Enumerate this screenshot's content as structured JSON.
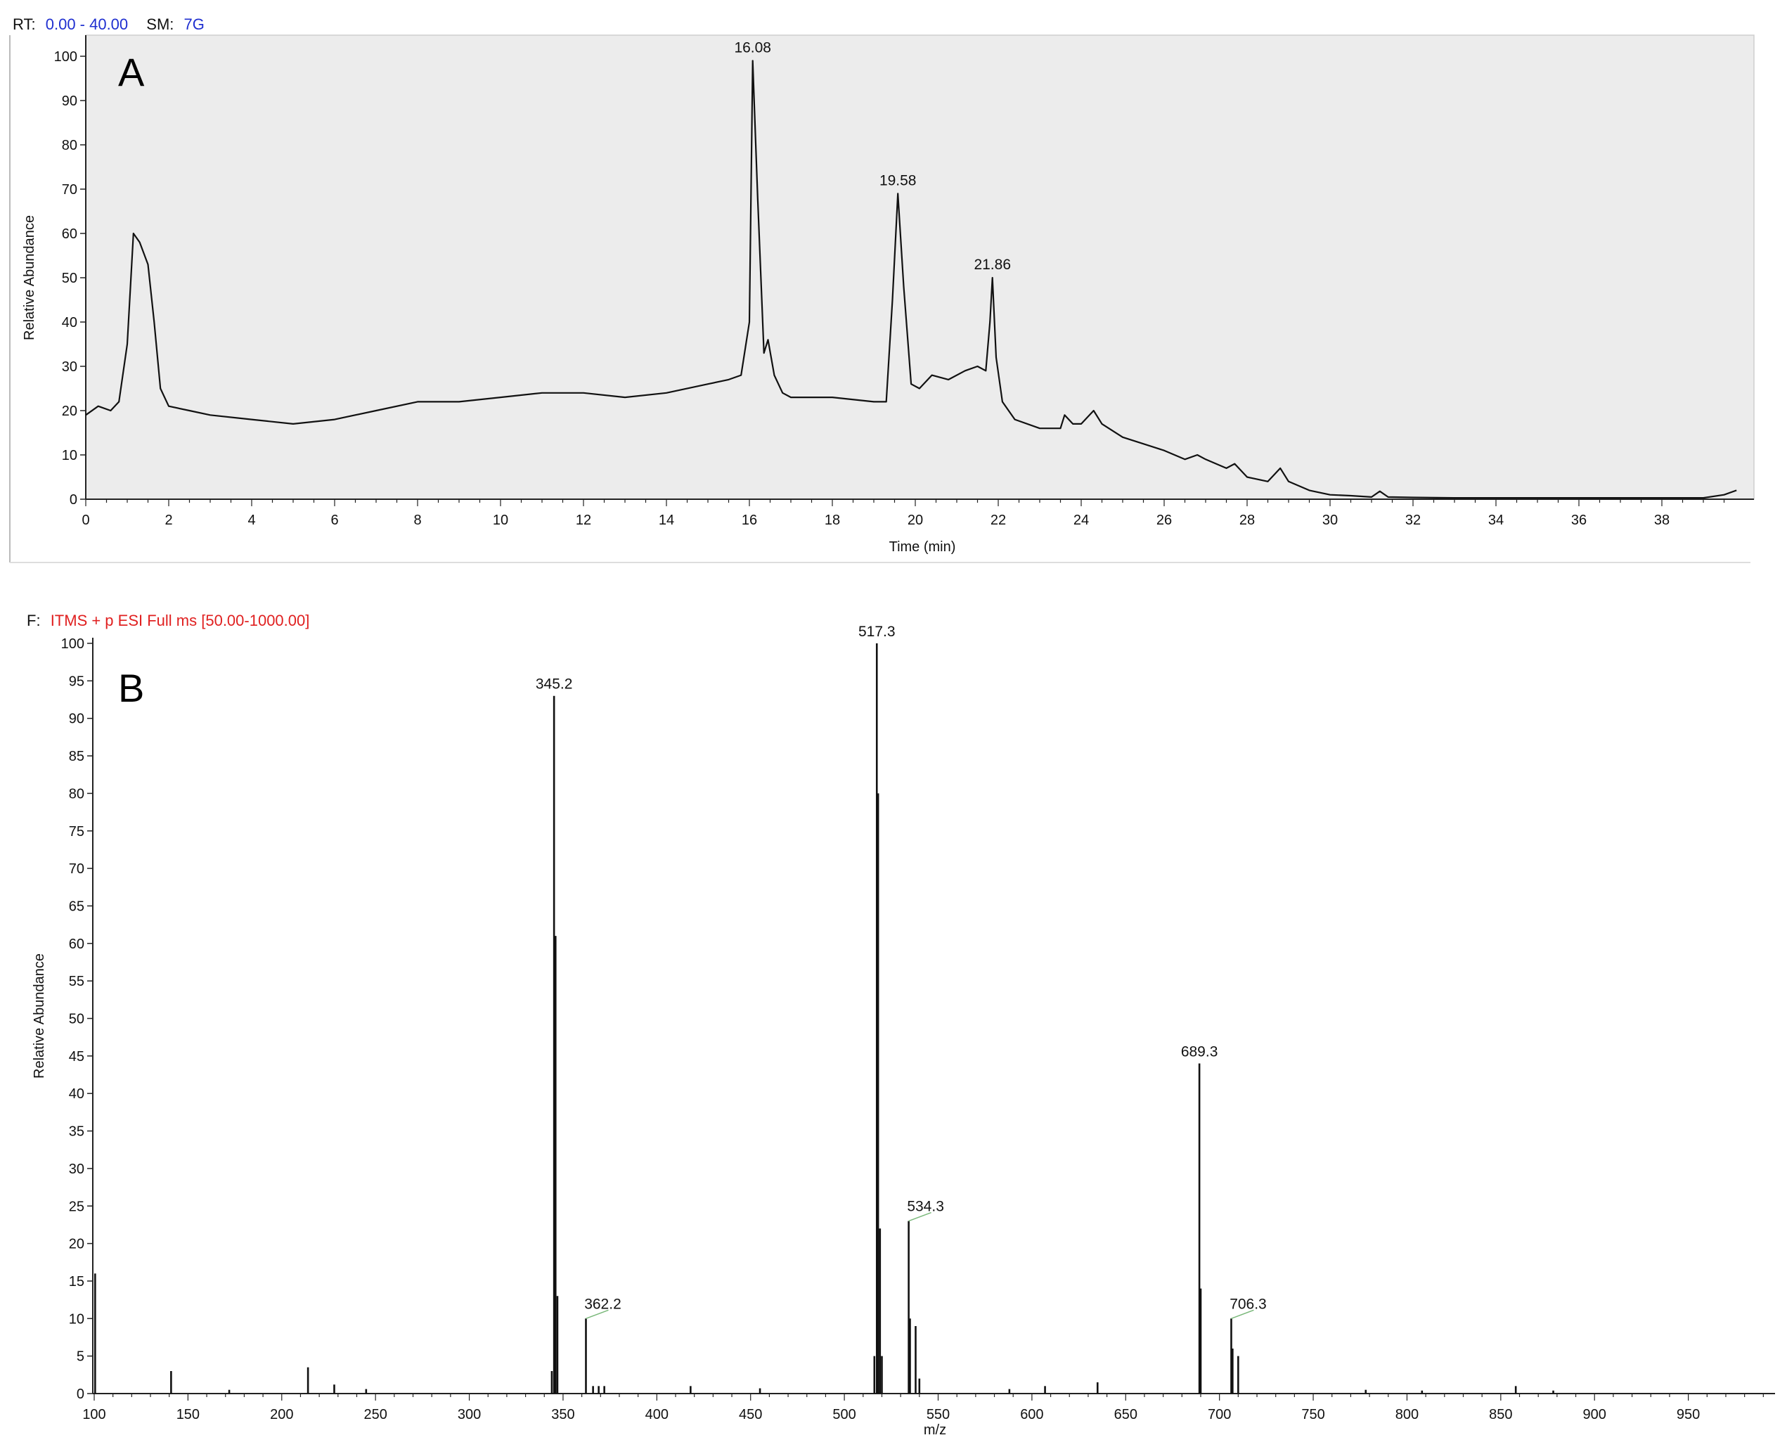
{
  "colors": {
    "header_blue": "#1f2fd0",
    "header_red": "#e02020",
    "plot_bg_A": "#ececec",
    "trace": "#111111",
    "label_leader": "#7ab87a"
  },
  "chart_data": [
    {
      "type": "line",
      "panel_label": "A",
      "header": {
        "rt_prefix": "RT:",
        "rt_value": "0.00 - 40.00",
        "sm_prefix": "SM:",
        "sm_value": "7G"
      },
      "xlabel": "Time (min)",
      "ylabel": "Relative Abundance",
      "xlim": [
        0,
        40
      ],
      "ylim": [
        0,
        100
      ],
      "x_ticks": [
        "0",
        "2",
        "4",
        "6",
        "8",
        "10",
        "12",
        "14",
        "16",
        "18",
        "20",
        "22",
        "24",
        "26",
        "28",
        "30",
        "32",
        "34",
        "36",
        "38"
      ],
      "y_ticks": [
        "0",
        "10",
        "20",
        "30",
        "40",
        "50",
        "60",
        "70",
        "80",
        "90",
        "100"
      ],
      "grid": false,
      "series": [
        {
          "x": [
            0,
            0.3,
            0.6,
            0.8,
            1.0,
            1.15,
            1.3,
            1.5,
            1.65,
            1.8,
            2,
            2.5,
            3,
            4,
            5,
            6,
            7,
            8,
            9,
            10,
            11,
            12,
            13,
            14,
            15,
            15.5,
            15.8,
            16.0,
            16.08,
            16.2,
            16.35,
            16.45,
            16.6,
            16.8,
            17,
            18,
            19,
            19.3,
            19.45,
            19.58,
            19.72,
            19.9,
            20.1,
            20.4,
            20.8,
            21.2,
            21.5,
            21.7,
            21.8,
            21.86,
            21.95,
            22.1,
            22.4,
            23,
            23.5,
            23.6,
            23.8,
            24,
            24.3,
            24.5,
            25,
            26,
            26.5,
            26.8,
            27,
            27.5,
            27.7,
            28,
            28.5,
            28.8,
            29,
            29.5,
            30,
            30.5,
            31,
            31.2,
            31.4,
            32,
            33,
            34,
            35,
            36,
            37,
            38,
            39,
            39.5,
            39.8
          ],
          "y": [
            19,
            21,
            20,
            22,
            35,
            60,
            58,
            53,
            40,
            25,
            21,
            20,
            19,
            18,
            17,
            18,
            20,
            22,
            22,
            23,
            24,
            24,
            23,
            24,
            26,
            27,
            28,
            40,
            99,
            68,
            33,
            36,
            28,
            24,
            23,
            23,
            22,
            22,
            45,
            69,
            48,
            26,
            25,
            28,
            27,
            29,
            30,
            29,
            40,
            50,
            32,
            22,
            18,
            16,
            16,
            19,
            17,
            17,
            20,
            17,
            14,
            11,
            9,
            10,
            9,
            7,
            8,
            5,
            4,
            7,
            4,
            2,
            1,
            0.8,
            0.5,
            1.8,
            0.5,
            0.4,
            0.3,
            0.3,
            0.3,
            0.3,
            0.3,
            0.3,
            0.3,
            1,
            2
          ]
        }
      ],
      "annotations": [
        {
          "text": "16.08",
          "x": 16.08,
          "y": 99
        },
        {
          "text": "19.58",
          "x": 19.58,
          "y": 69
        },
        {
          "text": "21.86",
          "x": 21.86,
          "y": 50
        }
      ]
    },
    {
      "type": "bar",
      "panel_label": "B",
      "header": {
        "prefix": "F:",
        "value": "ITMS + p ESI Full ms [50.00-1000.00]"
      },
      "xlabel": "m/z",
      "ylabel": "Relative Abundance",
      "xlim": [
        100,
        1000
      ],
      "ylim": [
        0,
        100
      ],
      "x_ticks": [
        "100",
        "150",
        "200",
        "250",
        "300",
        "350",
        "400",
        "450",
        "500",
        "550",
        "600",
        "650",
        "700",
        "750",
        "800",
        "850",
        "900",
        "950"
      ],
      "y_ticks": [
        "0",
        "5",
        "10",
        "15",
        "20",
        "25",
        "30",
        "35",
        "40",
        "45",
        "50",
        "55",
        "60",
        "65",
        "70",
        "75",
        "80",
        "85",
        "90",
        "95",
        "100"
      ],
      "grid": false,
      "peaks": [
        {
          "x": 100.5,
          "y": 16
        },
        {
          "x": 141,
          "y": 3
        },
        {
          "x": 172,
          "y": 0.5
        },
        {
          "x": 214,
          "y": 3.5
        },
        {
          "x": 228,
          "y": 1.2
        },
        {
          "x": 245,
          "y": 0.6
        },
        {
          "x": 344,
          "y": 3
        },
        {
          "x": 345.2,
          "y": 93
        },
        {
          "x": 346,
          "y": 61
        },
        {
          "x": 347,
          "y": 13
        },
        {
          "x": 362.2,
          "y": 10
        },
        {
          "x": 366,
          "y": 1
        },
        {
          "x": 369,
          "y": 1
        },
        {
          "x": 372,
          "y": 1
        },
        {
          "x": 418,
          "y": 1
        },
        {
          "x": 455,
          "y": 0.7
        },
        {
          "x": 516,
          "y": 5
        },
        {
          "x": 517.3,
          "y": 100
        },
        {
          "x": 518,
          "y": 80
        },
        {
          "x": 519,
          "y": 22
        },
        {
          "x": 520,
          "y": 5
        },
        {
          "x": 534.3,
          "y": 23
        },
        {
          "x": 535,
          "y": 10
        },
        {
          "x": 538,
          "y": 9
        },
        {
          "x": 540,
          "y": 2
        },
        {
          "x": 588,
          "y": 0.6
        },
        {
          "x": 607,
          "y": 1
        },
        {
          "x": 635,
          "y": 1.5
        },
        {
          "x": 689.3,
          "y": 44
        },
        {
          "x": 690,
          "y": 14
        },
        {
          "x": 706.3,
          "y": 10
        },
        {
          "x": 707,
          "y": 6
        },
        {
          "x": 710,
          "y": 5
        },
        {
          "x": 778,
          "y": 0.5
        },
        {
          "x": 808,
          "y": 0.4
        },
        {
          "x": 858,
          "y": 1
        },
        {
          "x": 878,
          "y": 0.4
        }
      ],
      "annotations": [
        {
          "text": "345.2",
          "x": 345.2,
          "y": 93
        },
        {
          "text": "362.2",
          "x": 362.2,
          "y": 10
        },
        {
          "text": "517.3",
          "x": 517.3,
          "y": 100
        },
        {
          "text": "534.3",
          "x": 534.3,
          "y": 23
        },
        {
          "text": "689.3",
          "x": 689.3,
          "y": 44
        },
        {
          "text": "706.3",
          "x": 706.3,
          "y": 10
        }
      ]
    }
  ]
}
